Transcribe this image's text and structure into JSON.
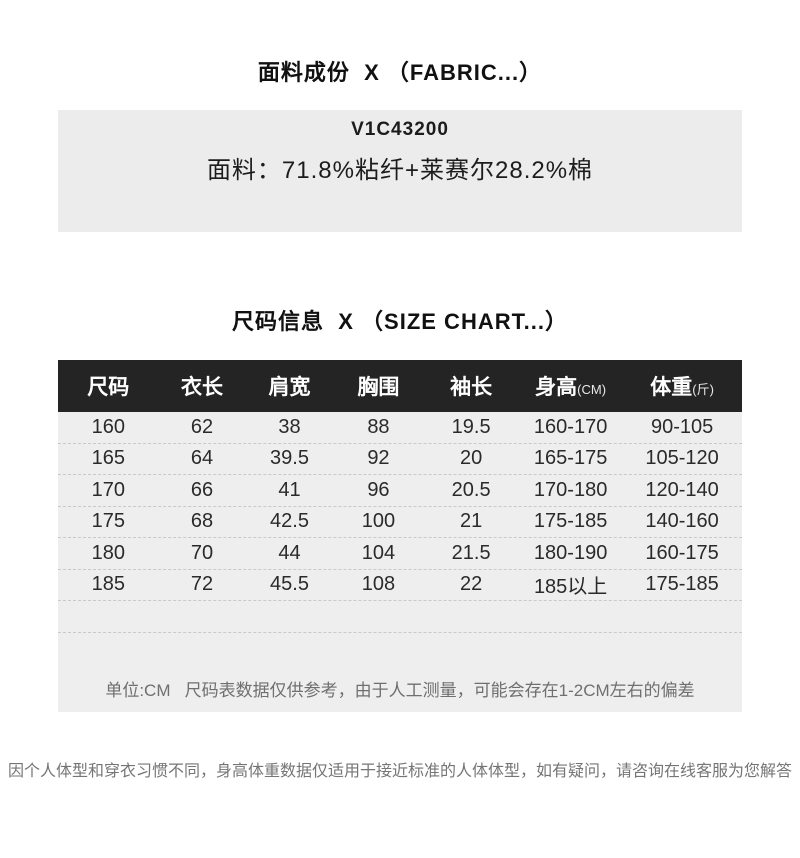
{
  "fabric_section": {
    "title": "面料成份  X （FABRIC...）",
    "product_code": "V1C43200",
    "composition": "面料：71.8%粘纤+莱赛尔28.2%棉"
  },
  "size_section": {
    "title": "尺码信息  X （SIZE CHART...）",
    "table": {
      "headers": [
        {
          "key": "size",
          "label": "尺码",
          "unit": ""
        },
        {
          "key": "length",
          "label": "衣长",
          "unit": ""
        },
        {
          "key": "shoulder",
          "label": "肩宽",
          "unit": ""
        },
        {
          "key": "chest",
          "label": "胸围",
          "unit": ""
        },
        {
          "key": "sleeve",
          "label": "袖长",
          "unit": ""
        },
        {
          "key": "height",
          "label": "身高",
          "unit": "(CM)"
        },
        {
          "key": "weight",
          "label": "体重",
          "unit": "(斤)"
        }
      ],
      "rows": [
        [
          "160",
          "62",
          "38",
          "88",
          "19.5",
          "160-170",
          "90-105"
        ],
        [
          "165",
          "64",
          "39.5",
          "92",
          "20",
          "165-175",
          "105-120"
        ],
        [
          "170",
          "66",
          "41",
          "96",
          "20.5",
          "170-180",
          "120-140"
        ],
        [
          "175",
          "68",
          "42.5",
          "100",
          "21",
          "175-185",
          "140-160"
        ],
        [
          "180",
          "70",
          "44",
          "104",
          "21.5",
          "180-190",
          "160-175"
        ],
        [
          "185",
          "72",
          "45.5",
          "108",
          "22",
          "185以上",
          "175-185"
        ]
      ],
      "note": "单位:CM   尺码表数据仅供参考，由于人工测量，可能会存在1-2CM左右的偏差"
    }
  },
  "footer": "因个人体型和穿衣习惯不同，身高体重数据仅适用于接近标准的人体体型，如有疑问，请咨询在线客服为您解答",
  "colors": {
    "table_header_bg": "#242424",
    "table_body_bg": "#eeeeee",
    "fabric_box_bg": "#ececec",
    "note_text": "#6f6f6f",
    "row_divider": "#c9c9c9"
  }
}
